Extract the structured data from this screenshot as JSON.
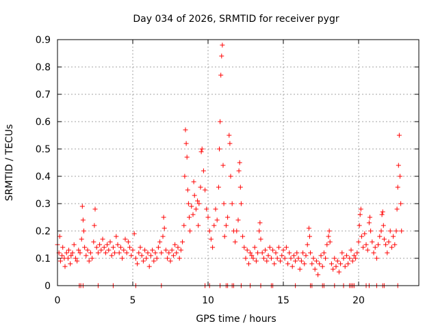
{
  "chart_data": {
    "type": "scatter",
    "title": "Day 034 of 2026, SRMTID for receiver pygr",
    "xlabel": "GPS time / hours",
    "ylabel": "SRMTID / TECUs",
    "xlim": [
      0,
      24
    ],
    "ylim": [
      0,
      0.9
    ],
    "grid": true,
    "marker": "+",
    "series_color": "#ff0000",
    "x_ticks": [
      0,
      5,
      10,
      15,
      20
    ],
    "x_tick_labels": [
      "0",
      "5",
      "10",
      "15",
      "20"
    ],
    "y_ticks": [
      0,
      0.1,
      0.2,
      0.3,
      0.4,
      0.5,
      0.6,
      0.7,
      0.8,
      0.9
    ],
    "y_tick_labels": [
      "0",
      "0.1",
      "0.2",
      "0.3",
      "0.4",
      "0.5",
      "0.6",
      "0.7",
      "0.8",
      "0.9"
    ],
    "series": [
      {
        "name": "SRMTID",
        "points": [
          [
            0.0,
            0.15
          ],
          [
            0.1,
            0.12
          ],
          [
            0.15,
            0.18
          ],
          [
            0.2,
            0.09
          ],
          [
            0.3,
            0.11
          ],
          [
            0.35,
            0.14
          ],
          [
            0.45,
            0.1
          ],
          [
            0.5,
            0.07
          ],
          [
            0.6,
            0.12
          ],
          [
            0.7,
            0.1
          ],
          [
            0.75,
            0.13
          ],
          [
            0.85,
            0.08
          ],
          [
            0.9,
            0.11
          ],
          [
            1.0,
            0.12
          ],
          [
            1.1,
            0.15
          ],
          [
            1.2,
            0.1
          ],
          [
            1.3,
            0.09
          ],
          [
            1.4,
            0.13
          ],
          [
            1.5,
            0.12
          ],
          [
            1.6,
            0.17
          ],
          [
            1.65,
            0.29
          ],
          [
            1.7,
            0.24
          ],
          [
            1.75,
            0.2
          ],
          [
            1.8,
            0.14
          ],
          [
            1.9,
            0.11
          ],
          [
            2.0,
            0.13
          ],
          [
            2.1,
            0.09
          ],
          [
            2.2,
            0.12
          ],
          [
            2.3,
            0.1
          ],
          [
            2.4,
            0.16
          ],
          [
            2.45,
            0.22
          ],
          [
            2.5,
            0.28
          ],
          [
            2.6,
            0.14
          ],
          [
            2.7,
            0.12
          ],
          [
            2.8,
            0.15
          ],
          [
            2.9,
            0.13
          ],
          [
            3.0,
            0.17
          ],
          [
            3.1,
            0.14
          ],
          [
            3.2,
            0.12
          ],
          [
            3.3,
            0.15
          ],
          [
            3.4,
            0.13
          ],
          [
            3.5,
            0.16
          ],
          [
            3.6,
            0.11
          ],
          [
            3.7,
            0.14
          ],
          [
            3.8,
            0.12
          ],
          [
            3.9,
            0.18
          ],
          [
            4.0,
            0.15
          ],
          [
            4.1,
            0.12
          ],
          [
            4.2,
            0.14
          ],
          [
            4.3,
            0.1
          ],
          [
            4.4,
            0.13
          ],
          [
            4.5,
            0.17
          ],
          [
            4.6,
            0.12
          ],
          [
            4.7,
            0.16
          ],
          [
            4.8,
            0.14
          ],
          [
            4.9,
            0.11
          ],
          [
            5.0,
            0.13
          ],
          [
            5.1,
            0.19
          ],
          [
            5.2,
            0.1
          ],
          [
            5.3,
            0.08
          ],
          [
            5.4,
            0.12
          ],
          [
            5.5,
            0.14
          ],
          [
            5.6,
            0.11
          ],
          [
            5.7,
            0.09
          ],
          [
            5.8,
            0.13
          ],
          [
            5.9,
            0.1
          ],
          [
            6.0,
            0.12
          ],
          [
            6.1,
            0.07
          ],
          [
            6.2,
            0.11
          ],
          [
            6.3,
            0.13
          ],
          [
            6.4,
            0.09
          ],
          [
            6.5,
            0.12
          ],
          [
            6.6,
            0.1
          ],
          [
            6.7,
            0.14
          ],
          [
            6.8,
            0.16
          ],
          [
            6.9,
            0.12
          ],
          [
            7.0,
            0.18
          ],
          [
            7.05,
            0.25
          ],
          [
            7.1,
            0.21
          ],
          [
            7.2,
            0.13
          ],
          [
            7.3,
            0.1
          ],
          [
            7.4,
            0.12
          ],
          [
            7.5,
            0.09
          ],
          [
            7.6,
            0.13
          ],
          [
            7.7,
            0.11
          ],
          [
            7.8,
            0.15
          ],
          [
            7.9,
            0.12
          ],
          [
            8.0,
            0.14
          ],
          [
            8.1,
            0.1
          ],
          [
            8.2,
            0.13
          ],
          [
            8.3,
            0.16
          ],
          [
            8.4,
            0.22
          ],
          [
            8.45,
            0.4
          ],
          [
            8.5,
            0.57
          ],
          [
            8.55,
            0.52
          ],
          [
            8.6,
            0.47
          ],
          [
            8.65,
            0.35
          ],
          [
            8.7,
            0.3
          ],
          [
            8.75,
            0.25
          ],
          [
            8.8,
            0.2
          ],
          [
            8.9,
            0.29
          ],
          [
            9.0,
            0.26
          ],
          [
            9.05,
            0.38
          ],
          [
            9.1,
            0.33
          ],
          [
            9.2,
            0.28
          ],
          [
            9.3,
            0.31
          ],
          [
            9.35,
            0.22
          ],
          [
            9.4,
            0.3
          ],
          [
            9.5,
            0.36
          ],
          [
            9.55,
            0.49
          ],
          [
            9.6,
            0.5
          ],
          [
            9.7,
            0.42
          ],
          [
            9.8,
            0.35
          ],
          [
            9.9,
            0.28
          ],
          [
            10.0,
            0.25
          ],
          [
            10.1,
            0.2
          ],
          [
            10.2,
            0.17
          ],
          [
            10.3,
            0.14
          ],
          [
            10.4,
            0.22
          ],
          [
            10.5,
            0.28
          ],
          [
            10.6,
            0.24
          ],
          [
            10.7,
            0.36
          ],
          [
            10.75,
            0.5
          ],
          [
            10.8,
            0.6
          ],
          [
            10.85,
            0.77
          ],
          [
            10.9,
            0.84
          ],
          [
            10.95,
            0.88
          ],
          [
            11.0,
            0.44
          ],
          [
            11.05,
            0.3
          ],
          [
            11.1,
            0.18
          ],
          [
            11.2,
            0.22
          ],
          [
            11.3,
            0.25
          ],
          [
            11.4,
            0.55
          ],
          [
            11.45,
            0.52
          ],
          [
            11.5,
            0.4
          ],
          [
            11.6,
            0.3
          ],
          [
            11.7,
            0.2
          ],
          [
            11.8,
            0.16
          ],
          [
            11.9,
            0.2
          ],
          [
            12.0,
            0.24
          ],
          [
            12.05,
            0.42
          ],
          [
            12.1,
            0.45
          ],
          [
            12.15,
            0.36
          ],
          [
            12.2,
            0.3
          ],
          [
            12.3,
            0.18
          ],
          [
            12.4,
            0.14
          ],
          [
            12.5,
            0.1
          ],
          [
            12.6,
            0.13
          ],
          [
            12.7,
            0.08
          ],
          [
            12.8,
            0.12
          ],
          [
            12.9,
            0.11
          ],
          [
            13.0,
            0.1
          ],
          [
            13.1,
            0.14
          ],
          [
            13.2,
            0.09
          ],
          [
            13.3,
            0.12
          ],
          [
            13.4,
            0.2
          ],
          [
            13.45,
            0.23
          ],
          [
            13.5,
            0.17
          ],
          [
            13.6,
            0.12
          ],
          [
            13.7,
            0.1
          ],
          [
            13.8,
            0.13
          ],
          [
            13.9,
            0.09
          ],
          [
            14.0,
            0.11
          ],
          [
            14.1,
            0.14
          ],
          [
            14.2,
            0.1
          ],
          [
            14.3,
            0.13
          ],
          [
            14.4,
            0.08
          ],
          [
            14.5,
            0.12
          ],
          [
            14.6,
            0.1
          ],
          [
            14.7,
            0.14
          ],
          [
            14.8,
            0.09
          ],
          [
            14.9,
            0.11
          ],
          [
            15.0,
            0.13
          ],
          [
            15.1,
            0.1
          ],
          [
            15.2,
            0.14
          ],
          [
            15.3,
            0.08
          ],
          [
            15.4,
            0.12
          ],
          [
            15.5,
            0.1
          ],
          [
            15.6,
            0.07
          ],
          [
            15.7,
            0.11
          ],
          [
            15.8,
            0.09
          ],
          [
            15.9,
            0.12
          ],
          [
            16.0,
            0.1
          ],
          [
            16.1,
            0.06
          ],
          [
            16.2,
            0.09
          ],
          [
            16.3,
            0.12
          ],
          [
            16.4,
            0.08
          ],
          [
            16.5,
            0.11
          ],
          [
            16.6,
            0.15
          ],
          [
            16.7,
            0.21
          ],
          [
            16.75,
            0.18
          ],
          [
            16.8,
            0.12
          ],
          [
            16.9,
            0.08
          ],
          [
            17.0,
            0.1
          ],
          [
            17.1,
            0.06
          ],
          [
            17.2,
            0.09
          ],
          [
            17.3,
            0.04
          ],
          [
            17.4,
            0.08
          ],
          [
            17.5,
            0.11
          ],
          [
            17.6,
            0.07
          ],
          [
            17.7,
            0.12
          ],
          [
            17.8,
            0.1
          ],
          [
            17.9,
            0.15
          ],
          [
            18.0,
            0.18
          ],
          [
            18.05,
            0.2
          ],
          [
            18.1,
            0.16
          ],
          [
            18.2,
            0.08
          ],
          [
            18.3,
            0.06
          ],
          [
            18.4,
            0.1
          ],
          [
            18.5,
            0.07
          ],
          [
            18.6,
            0.09
          ],
          [
            18.7,
            0.05
          ],
          [
            18.8,
            0.08
          ],
          [
            18.9,
            0.12
          ],
          [
            19.0,
            0.1
          ],
          [
            19.1,
            0.07
          ],
          [
            19.2,
            0.11
          ],
          [
            19.3,
            0.08
          ],
          [
            19.4,
            0.1
          ],
          [
            19.5,
            0.13
          ],
          [
            19.6,
            0.09
          ],
          [
            19.7,
            0.11
          ],
          [
            19.8,
            0.1
          ],
          [
            19.9,
            0.12
          ],
          [
            20.0,
            0.16
          ],
          [
            20.05,
            0.22
          ],
          [
            20.1,
            0.26
          ],
          [
            20.15,
            0.28
          ],
          [
            20.2,
            0.18
          ],
          [
            20.3,
            0.14
          ],
          [
            20.4,
            0.19
          ],
          [
            20.5,
            0.15
          ],
          [
            20.6,
            0.13
          ],
          [
            20.7,
            0.23
          ],
          [
            20.75,
            0.25
          ],
          [
            20.8,
            0.2
          ],
          [
            20.9,
            0.16
          ],
          [
            21.0,
            0.12
          ],
          [
            21.1,
            0.14
          ],
          [
            21.2,
            0.1
          ],
          [
            21.3,
            0.15
          ],
          [
            21.4,
            0.18
          ],
          [
            21.5,
            0.2
          ],
          [
            21.55,
            0.26
          ],
          [
            21.6,
            0.27
          ],
          [
            21.65,
            0.22
          ],
          [
            21.7,
            0.17
          ],
          [
            21.8,
            0.15
          ],
          [
            21.9,
            0.12
          ],
          [
            22.0,
            0.16
          ],
          [
            22.1,
            0.2
          ],
          [
            22.2,
            0.14
          ],
          [
            22.3,
            0.18
          ],
          [
            22.4,
            0.15
          ],
          [
            22.5,
            0.2
          ],
          [
            22.55,
            0.28
          ],
          [
            22.6,
            0.36
          ],
          [
            22.65,
            0.44
          ],
          [
            22.7,
            0.55
          ],
          [
            22.75,
            0.4
          ],
          [
            22.8,
            0.3
          ],
          [
            22.85,
            0.2
          ],
          [
            1.45,
            0.0
          ],
          [
            1.55,
            0.0
          ],
          [
            1.7,
            0.0
          ],
          [
            2.7,
            0.0
          ],
          [
            3.7,
            0.0
          ],
          [
            5.2,
            0.0
          ],
          [
            6.9,
            0.0
          ],
          [
            9.8,
            0.0
          ],
          [
            10.1,
            0.0
          ],
          [
            10.8,
            0.0
          ],
          [
            11.2,
            0.0
          ],
          [
            11.3,
            0.0
          ],
          [
            11.6,
            0.0
          ],
          [
            11.7,
            0.0
          ],
          [
            12.2,
            0.0
          ],
          [
            12.8,
            0.0
          ],
          [
            13.5,
            0.0
          ],
          [
            14.2,
            0.0
          ],
          [
            14.3,
            0.0
          ],
          [
            15.8,
            0.0
          ],
          [
            16.8,
            0.0
          ],
          [
            16.9,
            0.0
          ],
          [
            17.6,
            0.0
          ],
          [
            17.7,
            0.0
          ],
          [
            18.4,
            0.0
          ],
          [
            19.0,
            0.0
          ],
          [
            19.4,
            0.0
          ],
          [
            19.5,
            0.0
          ],
          [
            19.6,
            0.0
          ],
          [
            19.7,
            0.0
          ],
          [
            20.5,
            0.0
          ],
          [
            20.7,
            0.0
          ],
          [
            21.2,
            0.0
          ],
          [
            21.6,
            0.0
          ],
          [
            21.7,
            0.0
          ],
          [
            22.6,
            0.0
          ]
        ]
      }
    ]
  }
}
